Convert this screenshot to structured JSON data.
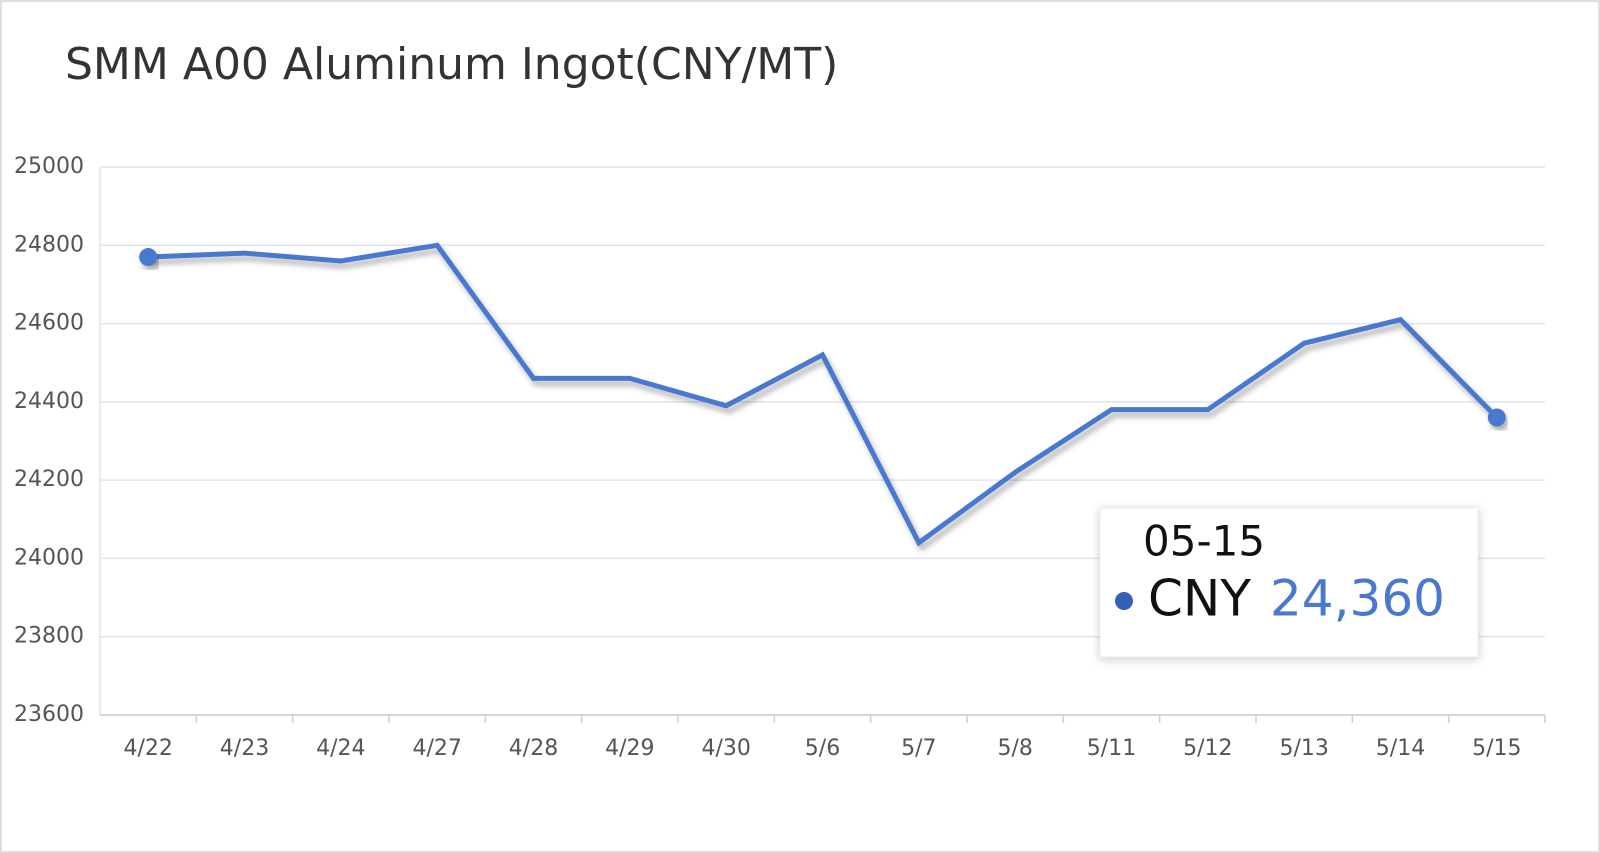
{
  "chart_data": {
    "type": "line",
    "title": "SMM A00 Aluminum Ingot(CNY/MT)",
    "categories": [
      "4/22",
      "4/23",
      "4/24",
      "4/27",
      "4/28",
      "4/29",
      "4/30",
      "5/6",
      "5/7",
      "5/8",
      "5/11",
      "5/12",
      "5/13",
      "5/14",
      "5/15"
    ],
    "values": [
      24770,
      24780,
      24760,
      24800,
      24460,
      24460,
      24390,
      24520,
      24040,
      24220,
      24380,
      24380,
      24550,
      24610,
      24360
    ],
    "color": "#4a78cf",
    "ylim": [
      23600,
      25000
    ],
    "yticks": [
      23600,
      23800,
      24000,
      24200,
      24400,
      24600,
      24800,
      25000
    ],
    "grid": true,
    "tooltip": {
      "title": "05-15",
      "name": "CNY",
      "label": "24,360"
    }
  }
}
